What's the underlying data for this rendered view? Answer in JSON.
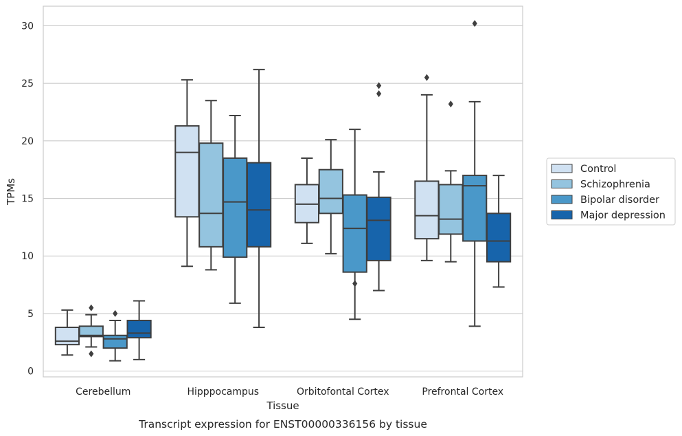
{
  "chart_data": {
    "type": "box",
    "caption": "Transcript expression for ENST00000336156 by tissue",
    "xlabel": "Tissue",
    "ylabel": "TPMs",
    "ylim": [
      -0.5,
      31.7
    ],
    "yticks": [
      0,
      5,
      10,
      15,
      20,
      25,
      30
    ],
    "grid": "horizontal",
    "legend_position": "right",
    "categories": [
      "Cerebellum",
      "Hipppocampus",
      "Orbitofontal Cortex",
      "Prefrontal Cortex"
    ],
    "series": [
      {
        "name": "Control",
        "color": "#d0e1f2",
        "boxes": [
          {
            "whisker_low": 1.4,
            "q1": 2.3,
            "median": 2.6,
            "q3": 3.8,
            "whisker_high": 5.3,
            "outliers": []
          },
          {
            "whisker_low": 9.1,
            "q1": 13.4,
            "median": 19.0,
            "q3": 21.3,
            "whisker_high": 25.3,
            "outliers": []
          },
          {
            "whisker_low": 11.1,
            "q1": 12.9,
            "median": 14.5,
            "q3": 16.2,
            "whisker_high": 18.5,
            "outliers": []
          },
          {
            "whisker_low": 9.6,
            "q1": 11.5,
            "median": 13.5,
            "q3": 16.5,
            "whisker_high": 24.0,
            "outliers": [
              25.5
            ]
          }
        ]
      },
      {
        "name": "Schizophrenia",
        "color": "#94c4df",
        "boxes": [
          {
            "whisker_low": 2.1,
            "q1": 3.0,
            "median": 3.1,
            "q3": 3.9,
            "whisker_high": 4.9,
            "outliers": [
              1.5,
              5.5
            ]
          },
          {
            "whisker_low": 8.8,
            "q1": 10.8,
            "median": 13.7,
            "q3": 19.8,
            "whisker_high": 23.5,
            "outliers": []
          },
          {
            "whisker_low": 10.2,
            "q1": 13.7,
            "median": 15.0,
            "q3": 17.5,
            "whisker_high": 20.1,
            "outliers": []
          },
          {
            "whisker_low": 9.5,
            "q1": 11.9,
            "median": 13.2,
            "q3": 16.2,
            "whisker_high": 17.4,
            "outliers": [
              23.2
            ]
          }
        ]
      },
      {
        "name": "Bipolar disorder",
        "color": "#4a98c9",
        "boxes": [
          {
            "whisker_low": 0.9,
            "q1": 2.0,
            "median": 2.8,
            "q3": 3.1,
            "whisker_high": 4.4,
            "outliers": [
              5.0
            ]
          },
          {
            "whisker_low": 5.9,
            "q1": 9.9,
            "median": 14.7,
            "q3": 18.5,
            "whisker_high": 22.2,
            "outliers": []
          },
          {
            "whisker_low": 4.5,
            "q1": 8.6,
            "median": 12.4,
            "q3": 15.3,
            "whisker_high": 21.0,
            "outliers": [
              7.6
            ]
          },
          {
            "whisker_low": 3.9,
            "q1": 11.3,
            "median": 16.1,
            "q3": 17.0,
            "whisker_high": 23.4,
            "outliers": [
              30.2
            ]
          }
        ]
      },
      {
        "name": "Major depression",
        "color": "#1764ab",
        "boxes": [
          {
            "whisker_low": 1.0,
            "q1": 2.9,
            "median": 3.3,
            "q3": 4.4,
            "whisker_high": 6.1,
            "outliers": []
          },
          {
            "whisker_low": 3.8,
            "q1": 10.8,
            "median": 14.0,
            "q3": 18.1,
            "whisker_high": 26.2,
            "outliers": []
          },
          {
            "whisker_low": 7.0,
            "q1": 9.6,
            "median": 13.1,
            "q3": 15.1,
            "whisker_high": 17.3,
            "outliers": [
              24.1,
              24.8
            ]
          },
          {
            "whisker_low": 7.3,
            "q1": 9.5,
            "median": 11.3,
            "q3": 13.7,
            "whisker_high": 17.0,
            "outliers": []
          }
        ]
      }
    ]
  }
}
